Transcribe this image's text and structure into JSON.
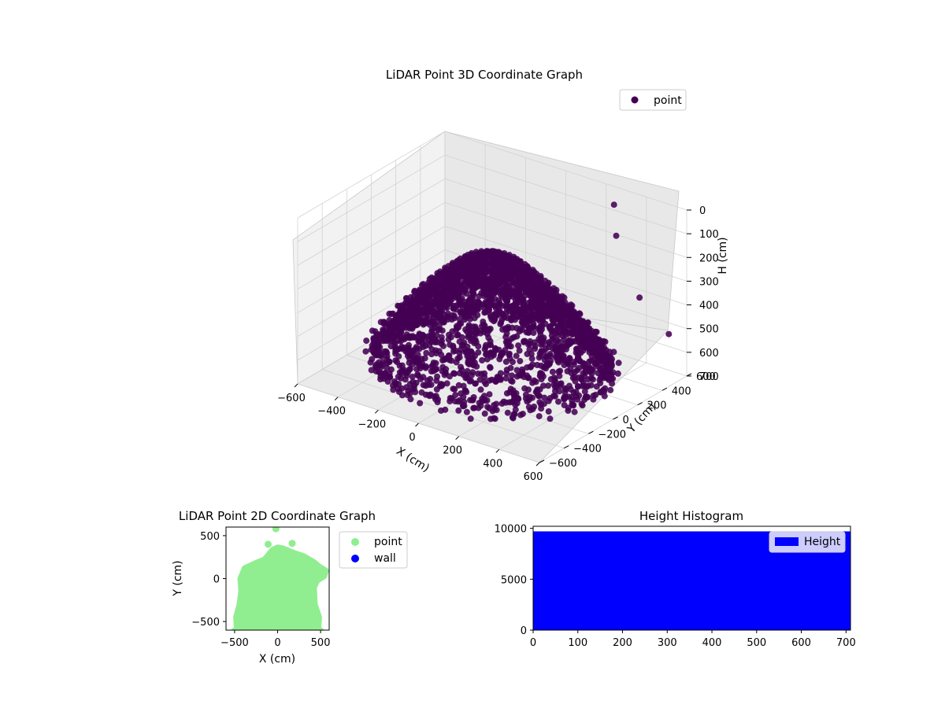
{
  "colors": {
    "point3d": "#440154",
    "point2d": "#90ee90",
    "wall": "#0000ff",
    "hist": "#0000ff",
    "pane": "#f2f2f2",
    "grid": "#d2d2d2"
  },
  "chart_data": [
    {
      "type": "scatter",
      "title": "LiDAR Point 3D Coordinate Graph",
      "xlabel": "X (cm)",
      "ylabel": "Y (cm)",
      "zlabel": "H (cm)",
      "xticks": [
        "−600",
        "−400",
        "−200",
        "0",
        "200",
        "400",
        "600"
      ],
      "yticks": [
        "−600",
        "−400",
        "−200",
        "0",
        "200",
        "400",
        "600"
      ],
      "zticks": [
        "0",
        "100",
        "200",
        "300",
        "400",
        "500",
        "600",
        "700"
      ],
      "xlim": [
        -600,
        600
      ],
      "ylim": [
        -600,
        600
      ],
      "zlim": [
        700,
        0
      ],
      "legend": [
        {
          "label": "point",
          "color": "#440154"
        }
      ],
      "legend_position": "upper-right",
      "series": [
        {
          "name": "point",
          "color": "#440154"
        }
      ]
    },
    {
      "type": "scatter",
      "title": "LiDAR Point 2D Coordinate Graph",
      "xlabel": "X (cm)",
      "ylabel": "Y (cm)",
      "xticks": [
        "−500",
        "0",
        "500"
      ],
      "yticks": [
        "−500",
        "0",
        "500"
      ],
      "xlim": [
        -600,
        600
      ],
      "ylim": [
        -600,
        600
      ],
      "legend": [
        {
          "label": "point",
          "color": "#90ee90"
        },
        {
          "label": "wall",
          "color": "#0000ff"
        }
      ],
      "legend_position": "outside-right",
      "series": [
        {
          "name": "point",
          "color": "#90ee90",
          "outline": [
            [
              -470,
              -600
            ],
            [
              -480,
              -450
            ],
            [
              -440,
              -300
            ],
            [
              -420,
              -150
            ],
            [
              -430,
              0
            ],
            [
              -380,
              120
            ],
            [
              -250,
              180
            ],
            [
              -150,
              220
            ],
            [
              -60,
              330
            ],
            [
              0,
              360
            ],
            [
              60,
              350
            ],
            [
              180,
              300
            ],
            [
              300,
              260
            ],
            [
              420,
              190
            ],
            [
              480,
              140
            ],
            [
              560,
              90
            ],
            [
              540,
              30
            ],
            [
              460,
              -20
            ],
            [
              420,
              -100
            ],
            [
              430,
              -300
            ],
            [
              480,
              -450
            ],
            [
              470,
              -600
            ]
          ],
          "outliers": [
            [
              -20,
              580
            ],
            [
              -110,
              400
            ],
            [
              170,
              410
            ],
            [
              -290,
              -560
            ],
            [
              -500,
              -610
            ],
            [
              500,
              -610
            ]
          ]
        },
        {
          "name": "wall",
          "color": "#0000ff",
          "points": []
        }
      ]
    },
    {
      "type": "bar",
      "title": "Height Histogram",
      "xticks": [
        "0",
        "100",
        "200",
        "300",
        "400",
        "500",
        "600",
        "700"
      ],
      "yticks": [
        "0",
        "5000",
        "10000"
      ],
      "xlim": [
        0,
        710
      ],
      "ylim": [
        0,
        10200
      ],
      "bins": [
        {
          "x0": 0,
          "x1": 710,
          "count": 9700
        }
      ],
      "legend": [
        {
          "label": "Height",
          "color": "#0000ff"
        }
      ],
      "legend_position": "upper-right"
    }
  ]
}
